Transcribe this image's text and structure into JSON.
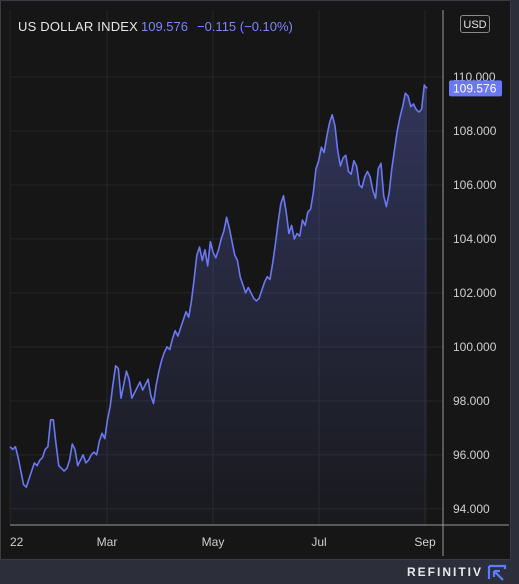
{
  "header": {
    "title": "US DOLLAR INDEX",
    "last": "109.576",
    "change": "−0.115 (−0.10%)",
    "currency": "USD"
  },
  "brand": {
    "name": "REFINITIV",
    "icon": "refinitiv-logo-icon"
  },
  "colors": {
    "line": "#6b78f5",
    "last_label_bg": "#6b78f5",
    "grid": "#2a2a2a"
  },
  "chart_data": {
    "type": "area",
    "series": [
      {
        "values": [
          96.3,
          96.2,
          96.3,
          95.9,
          95.4,
          94.9,
          94.8,
          95.1,
          95.4,
          95.7,
          95.6,
          95.8,
          95.9,
          96.2,
          96.3,
          97.3,
          97.3,
          96.4,
          95.6,
          95.5,
          95.4,
          95.5,
          95.8,
          96.4,
          96.2,
          95.6,
          95.8,
          96.0,
          95.7,
          95.8,
          96.0,
          96.1,
          96.0,
          96.5,
          96.8,
          96.6,
          97.3,
          97.8,
          98.6,
          99.3,
          99.2,
          98.1,
          98.6,
          99.1,
          98.8,
          98.1,
          98.3,
          98.5,
          98.7,
          98.4,
          98.6,
          98.8,
          98.2,
          97.9,
          98.6,
          99.1,
          99.5,
          99.8,
          100.0,
          99.9,
          100.3,
          100.6,
          100.4,
          100.7,
          101.0,
          101.3,
          101.1,
          101.7,
          102.5,
          103.4,
          103.7,
          103.2,
          103.6,
          103.0,
          103.9,
          103.5,
          103.3,
          103.6,
          104.0,
          104.3,
          104.8,
          104.4,
          103.9,
          103.4,
          103.2,
          102.6,
          102.3,
          102.0,
          102.2,
          102.0,
          101.8,
          101.7,
          101.8,
          102.1,
          102.4,
          102.6,
          102.5,
          103.1,
          103.8,
          104.6,
          105.3,
          105.6,
          105.0,
          104.2,
          104.5,
          104.0,
          104.2,
          104.1,
          104.7,
          104.5,
          105.0,
          105.1,
          105.7,
          106.6,
          106.9,
          107.4,
          107.2,
          107.8,
          108.3,
          108.6,
          108.2,
          107.3,
          106.7,
          107.0,
          107.1,
          106.5,
          106.4,
          106.9,
          106.7,
          106.0,
          105.9,
          106.3,
          106.5,
          106.3,
          105.8,
          105.5,
          106.6,
          106.8,
          105.6,
          105.2,
          105.7,
          106.6,
          107.3,
          108.0,
          108.5,
          108.9,
          109.4,
          109.3,
          108.9,
          109.0,
          108.8,
          108.7,
          108.8,
          109.7,
          109.576
        ]
      }
    ],
    "x_labels": [
      "22",
      "Mar",
      "May",
      "Jul",
      "Sep"
    ],
    "y_ticks": [
      "94.000",
      "96.000",
      "98.000",
      "100.000",
      "102.000",
      "104.000",
      "106.000",
      "108.000",
      "110.000"
    ],
    "ylim": [
      93.4,
      111.0
    ],
    "last_value_label": "109.576"
  }
}
